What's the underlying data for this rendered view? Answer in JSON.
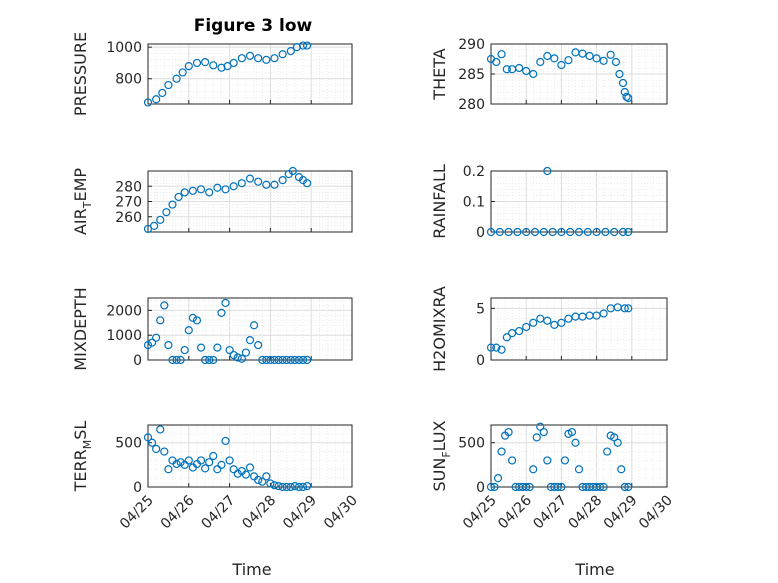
{
  "figure": {
    "title": "Figure 3 low",
    "xlabel": "Time",
    "x_ticks": [
      "04/25",
      "04/26",
      "04/27",
      "04/28",
      "04/29",
      "04/30"
    ],
    "marker_color": "#0072BD"
  },
  "chart_data": [
    {
      "type": "scatter",
      "name": "PRESSURE",
      "ylabel": "PRESSURE",
      "ylim": [
        640,
        1020
      ],
      "yticks": [
        800,
        1000
      ],
      "grid": true,
      "x": [
        0.0,
        0.2,
        0.35,
        0.5,
        0.7,
        0.85,
        1.0,
        1.2,
        1.4,
        1.6,
        1.8,
        1.95,
        2.1,
        2.3,
        2.5,
        2.7,
        2.9,
        3.1,
        3.3,
        3.5,
        3.65,
        3.8,
        3.9
      ],
      "y": [
        650,
        670,
        710,
        760,
        800,
        840,
        880,
        900,
        905,
        885,
        870,
        880,
        900,
        930,
        945,
        930,
        920,
        930,
        955,
        975,
        1000,
        1010,
        1010
      ]
    },
    {
      "type": "scatter",
      "name": "THETA",
      "ylabel": "THETA",
      "ylim": [
        280,
        290
      ],
      "yticks": [
        280,
        285,
        290
      ],
      "grid": true,
      "x": [
        0.0,
        0.15,
        0.3,
        0.45,
        0.6,
        0.8,
        1.0,
        1.2,
        1.4,
        1.6,
        1.8,
        2.0,
        2.2,
        2.4,
        2.6,
        2.8,
        3.0,
        3.2,
        3.4,
        3.55,
        3.65,
        3.75,
        3.8,
        3.85,
        3.9
      ],
      "y": [
        287.5,
        287.0,
        288.3,
        285.8,
        285.8,
        286.0,
        285.5,
        285.0,
        287.0,
        288.0,
        287.6,
        286.5,
        287.3,
        288.6,
        288.4,
        288.0,
        287.6,
        287.2,
        288.2,
        287.0,
        285.0,
        283.5,
        282.0,
        281.2,
        281.0
      ]
    },
    {
      "type": "scatter",
      "name": "AIR_TEMP",
      "ylabel": "AIR_TEMP",
      "ylim": [
        250,
        290
      ],
      "yticks": [
        260,
        270,
        280
      ],
      "grid": true,
      "x": [
        0.0,
        0.15,
        0.3,
        0.45,
        0.6,
        0.75,
        0.9,
        1.1,
        1.3,
        1.5,
        1.7,
        1.9,
        2.1,
        2.3,
        2.5,
        2.7,
        2.9,
        3.1,
        3.3,
        3.45,
        3.55,
        3.7,
        3.8,
        3.9
      ],
      "y": [
        252,
        254,
        258,
        263,
        268,
        273,
        276,
        277,
        278,
        276,
        279,
        278,
        280,
        282,
        285,
        283,
        281,
        281,
        284,
        288,
        290,
        286,
        284,
        282
      ]
    },
    {
      "type": "scatter",
      "name": "RAINFALL",
      "ylabel": "RAINFALL",
      "ylim": [
        0,
        0.2
      ],
      "yticks": [
        0,
        0.1,
        0.2
      ],
      "grid": true,
      "x": [
        0.0,
        0.25,
        0.5,
        0.75,
        1.0,
        1.25,
        1.5,
        1.6,
        1.75,
        2.0,
        2.25,
        2.5,
        2.75,
        3.0,
        3.25,
        3.5,
        3.75,
        3.9
      ],
      "y": [
        0,
        0,
        0,
        0,
        0,
        0,
        0,
        0.2,
        0,
        0,
        0,
        0,
        0,
        0,
        0,
        0,
        0,
        0
      ]
    },
    {
      "type": "scatter",
      "name": "MIXDEPTH",
      "ylabel": "MIXDEPTH",
      "ylim": [
        0,
        2500
      ],
      "yticks": [
        0,
        1000,
        2000
      ],
      "grid": true,
      "x": [
        0.0,
        0.1,
        0.2,
        0.3,
        0.4,
        0.5,
        0.6,
        0.7,
        0.8,
        0.9,
        1.0,
        1.1,
        1.2,
        1.3,
        1.4,
        1.5,
        1.6,
        1.7,
        1.8,
        1.9,
        2.0,
        2.1,
        2.2,
        2.3,
        2.4,
        2.5,
        2.6,
        2.7,
        2.8,
        2.9,
        3.0,
        3.1,
        3.2,
        3.3,
        3.4,
        3.5,
        3.6,
        3.7,
        3.8,
        3.9
      ],
      "y": [
        600,
        700,
        900,
        1600,
        2200,
        600,
        0,
        0,
        0,
        400,
        1200,
        1700,
        1600,
        500,
        0,
        0,
        0,
        500,
        1900,
        2300,
        400,
        200,
        100,
        50,
        300,
        800,
        1400,
        600,
        0,
        0,
        0,
        0,
        0,
        0,
        0,
        0,
        0,
        0,
        0,
        0
      ]
    },
    {
      "type": "scatter",
      "name": "H2OMIXRA",
      "ylabel": "H2OMIXRA",
      "ylim": [
        0,
        6
      ],
      "yticks": [
        0,
        5
      ],
      "grid": true,
      "x": [
        0.0,
        0.15,
        0.3,
        0.45,
        0.6,
        0.8,
        1.0,
        1.2,
        1.4,
        1.6,
        1.8,
        2.0,
        2.2,
        2.4,
        2.6,
        2.8,
        3.0,
        3.2,
        3.4,
        3.6,
        3.8,
        3.9
      ],
      "y": [
        1.2,
        1.2,
        1.0,
        2.2,
        2.6,
        2.8,
        3.2,
        3.6,
        4.0,
        3.8,
        3.4,
        3.6,
        4.0,
        4.2,
        4.2,
        4.3,
        4.3,
        4.5,
        5.0,
        5.1,
        5.0,
        5.0
      ]
    },
    {
      "type": "scatter",
      "name": "TERR_MSL",
      "ylabel": "TERR_MSL",
      "ylim": [
        0,
        700
      ],
      "yticks": [
        0,
        500
      ],
      "grid": true,
      "x": [
        0.0,
        0.1,
        0.2,
        0.3,
        0.4,
        0.5,
        0.6,
        0.7,
        0.8,
        0.9,
        1.0,
        1.1,
        1.2,
        1.3,
        1.4,
        1.5,
        1.6,
        1.7,
        1.8,
        1.9,
        2.0,
        2.1,
        2.2,
        2.3,
        2.4,
        2.5,
        2.6,
        2.7,
        2.8,
        2.9,
        3.0,
        3.1,
        3.2,
        3.3,
        3.4,
        3.5,
        3.6,
        3.7,
        3.8,
        3.9
      ],
      "y": [
        560,
        500,
        430,
        650,
        400,
        200,
        300,
        260,
        280,
        250,
        300,
        220,
        260,
        300,
        210,
        280,
        350,
        200,
        250,
        520,
        300,
        200,
        150,
        180,
        140,
        220,
        120,
        80,
        60,
        120,
        40,
        20,
        10,
        0,
        0,
        0,
        10,
        0,
        0,
        10
      ]
    },
    {
      "type": "scatter",
      "name": "SUN_FLUX",
      "ylabel": "SUN_FLUX",
      "ylim": [
        0,
        700
      ],
      "yticks": [
        0,
        500
      ],
      "grid": true,
      "x": [
        0.0,
        0.1,
        0.2,
        0.3,
        0.4,
        0.5,
        0.6,
        0.7,
        0.8,
        0.9,
        1.0,
        1.1,
        1.2,
        1.3,
        1.4,
        1.5,
        1.6,
        1.7,
        1.8,
        1.9,
        2.0,
        2.1,
        2.2,
        2.3,
        2.4,
        2.5,
        2.6,
        2.7,
        2.8,
        2.9,
        3.0,
        3.1,
        3.2,
        3.3,
        3.4,
        3.5,
        3.6,
        3.7,
        3.8,
        3.9
      ],
      "y": [
        0,
        0,
        100,
        400,
        580,
        620,
        300,
        0,
        0,
        0,
        0,
        0,
        200,
        560,
        680,
        620,
        300,
        0,
        0,
        0,
        0,
        300,
        600,
        620,
        500,
        200,
        0,
        0,
        0,
        0,
        0,
        0,
        0,
        400,
        580,
        560,
        500,
        200,
        0,
        0
      ]
    }
  ]
}
